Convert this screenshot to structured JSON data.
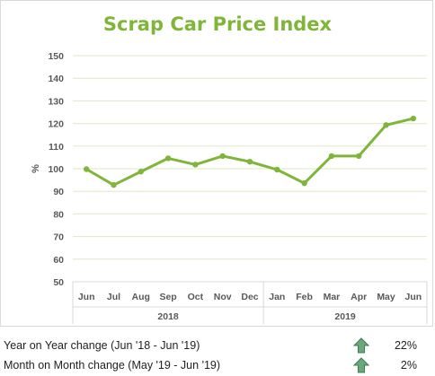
{
  "chart_data": {
    "type": "line",
    "title": "Scrap Car Price Index",
    "ylabel": "%",
    "xlabel": "",
    "ylim": [
      50,
      150
    ],
    "yticks": [
      50,
      60,
      70,
      80,
      90,
      100,
      110,
      120,
      130,
      140,
      150
    ],
    "grid": true,
    "legend": "none",
    "categories": [
      "Jun",
      "Jul",
      "Aug",
      "Sep",
      "Oct",
      "Nov",
      "Dec",
      "Jan",
      "Feb",
      "Mar",
      "Apr",
      "May",
      "Jun"
    ],
    "year_groups": [
      {
        "label": "2018",
        "count": 7
      },
      {
        "label": "2019",
        "count": 6
      }
    ],
    "series": [
      {
        "values": [
          99.8,
          92.8,
          98.7,
          104.6,
          101.8,
          105.6,
          103.1,
          99.6,
          93.6,
          105.6,
          105.6,
          119.3,
          122.2
        ],
        "color": "#7fb539"
      }
    ],
    "title_color": "#7fb539",
    "grid_color": "#dfe8c5"
  },
  "stats": [
    {
      "label": "Year on Year change (Jun '18 - Jun '19)",
      "value": "22%",
      "icon": "up-arrow-icon",
      "color": "#5b9b6b"
    },
    {
      "label": "Month on Month change (May '19 - Jun '19)",
      "value": "2%",
      "icon": "up-arrow-icon",
      "color": "#5b9b6b"
    }
  ]
}
